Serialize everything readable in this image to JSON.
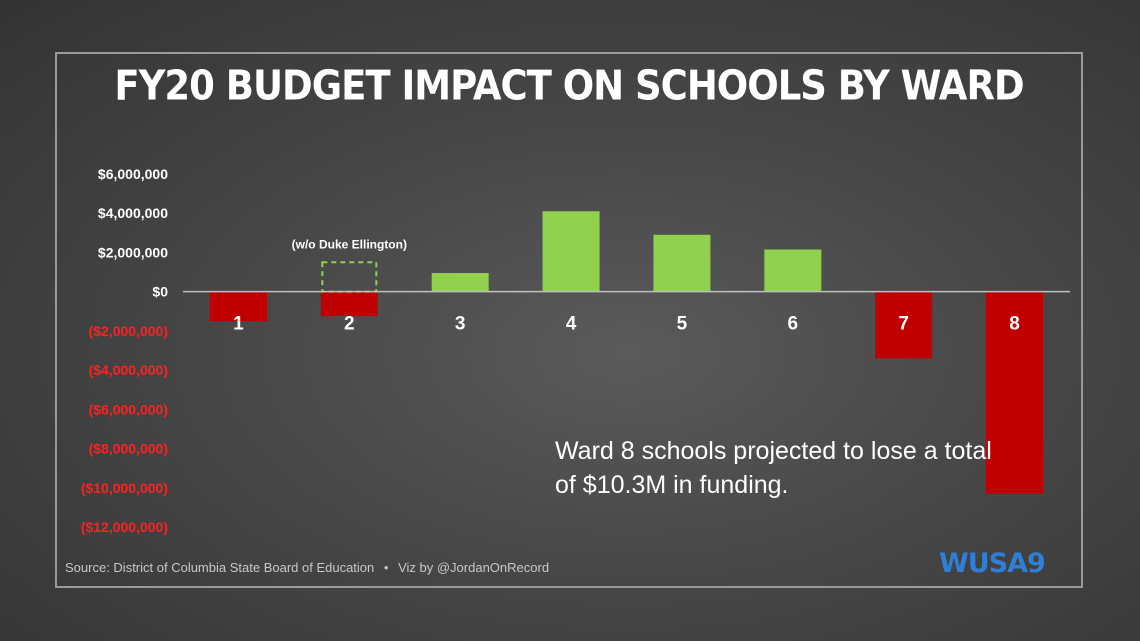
{
  "chart_data": {
    "type": "bar",
    "title": "FY20 BUDGET IMPACT ON SCHOOLS BY WARD",
    "categories": [
      "1",
      "2",
      "3",
      "4",
      "5",
      "6",
      "7",
      "8"
    ],
    "values": [
      -1500000,
      -1250000,
      950000,
      4100000,
      2900000,
      2150000,
      -3400000,
      -10300000
    ],
    "ylim": [
      -12000000,
      6000000
    ],
    "yticks": [
      6000000,
      4000000,
      2000000,
      0,
      -2000000,
      -4000000,
      -6000000,
      -8000000,
      -10000000,
      -12000000
    ],
    "ytick_labels": [
      "$6,000,000",
      "$4,000,000",
      "$2,000,000",
      "$0",
      "($2,000,000)",
      "($4,000,000)",
      "($6,000,000)",
      "($8,000,000)",
      "($10,000,000)",
      "($12,000,000)"
    ],
    "alternate": {
      "category": "2",
      "value": 1500000,
      "label": "(w/o Duke Ellington)"
    },
    "grid": false,
    "colors": {
      "positive": "#92d050",
      "negative": "#c00000",
      "negative_tick": "#ff2020",
      "positive_tick": "#ffffff"
    }
  },
  "annotation": "Ward 8 schools projected to lose a total of $10.3M in funding.",
  "source_text": "Source: District of Columbia State Board of Education",
  "source_separator": "•",
  "credit_text": "Viz by @JordanOnRecord",
  "logo_text": "WUSA9"
}
